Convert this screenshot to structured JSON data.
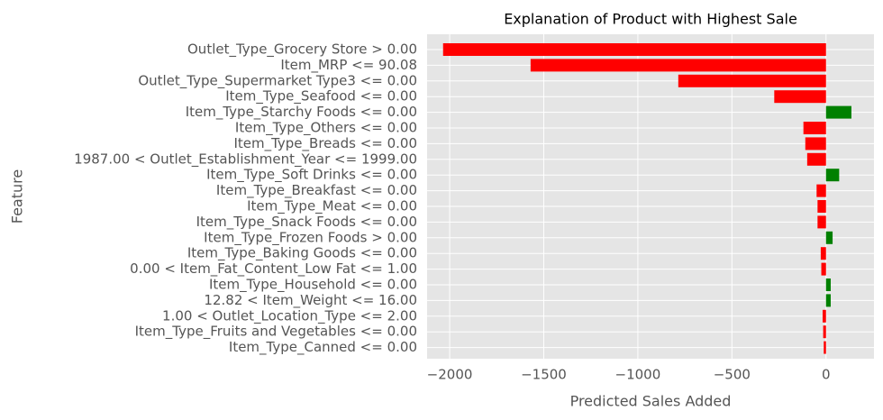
{
  "chart_data": {
    "type": "bar",
    "orientation": "horizontal",
    "title": "Explanation of Product with Highest Sale",
    "xlabel": "Predicted Sales Added",
    "ylabel": "Feature",
    "xlim": [
      -2120,
      255
    ],
    "xticks": [
      -2000,
      -1500,
      -1000,
      -500,
      0
    ],
    "xtick_labels": [
      "−2000",
      "−1500",
      "−1000",
      "−500",
      "0"
    ],
    "grid": true,
    "style": "ggplot",
    "colors": {
      "positive": "#008000",
      "negative": "#ff0000",
      "background": "#e5e5e5",
      "grid": "#ffffff"
    },
    "categories": [
      "Outlet_Type_Grocery Store > 0.00",
      "Item_MRP <= 90.08",
      "Outlet_Type_Supermarket Type3 <= 0.00",
      "Item_Type_Seafood <= 0.00",
      "Item_Type_Starchy Foods <= 0.00",
      "Item_Type_Others <= 0.00",
      "Item_Type_Breads <= 0.00",
      "1987.00 < Outlet_Establishment_Year <= 1999.00",
      "Item_Type_Soft Drinks <= 0.00",
      "Item_Type_Breakfast <= 0.00",
      "Item_Type_Meat <= 0.00",
      "Item_Type_Snack Foods <= 0.00",
      "Item_Type_Frozen Foods > 0.00",
      "Item_Type_Baking Goods <= 0.00",
      "0.00 < Item_Fat_Content_Low Fat <= 1.00",
      "Item_Type_Household <= 0.00",
      "12.82 < Item_Weight <= 16.00",
      "1.00 < Outlet_Location_Type <= 2.00",
      "Item_Type_Fruits and Vegetables <= 0.00",
      "Item_Type_Canned <= 0.00"
    ],
    "values": [
      -2035,
      -1570,
      -785,
      -275,
      135,
      -120,
      -110,
      -100,
      70,
      -50,
      -45,
      -45,
      35,
      -28,
      -25,
      25,
      25,
      -18,
      -15,
      -12
    ]
  }
}
